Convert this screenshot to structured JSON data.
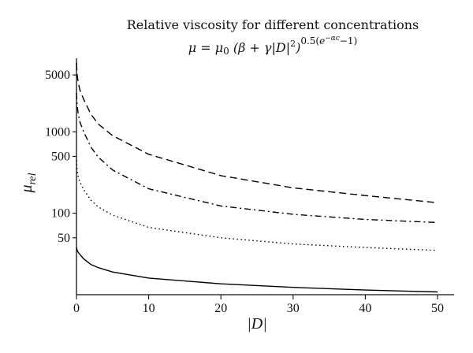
{
  "chart_data": {
    "type": "line",
    "title": "Relative viscosity for different concentrations",
    "subtitle": "μ = μ0 (β + γ|D|²)^(0.5(e^(−αc) − 1))",
    "xlabel": "|D|",
    "ylabel": "μrel",
    "xlim": [
      0,
      52
    ],
    "ylim": [
      10,
      8000
    ],
    "yscale": "log",
    "grid": false,
    "x_ticks": [
      0,
      10,
      20,
      30,
      40,
      50
    ],
    "x_tick_labels": [
      "0",
      "10",
      "20",
      "30",
      "40",
      "50"
    ],
    "y_ticks": [
      50,
      100,
      500,
      1000,
      5000
    ],
    "y_tick_labels": [
      "50",
      "100",
      "500",
      "1000",
      "5000"
    ],
    "x": [
      0,
      0.1,
      0.25,
      0.5,
      1,
      2,
      3,
      5,
      10,
      20,
      30,
      40,
      50
    ],
    "series": [
      {
        "style": "dashed",
        "values": [
          7000,
          5000,
          4000,
          3200,
          2500,
          1650,
          1250,
          900,
          530,
          290,
          205,
          165,
          135
        ]
      },
      {
        "style": "dashdot",
        "values": [
          3000,
          2100,
          1650,
          1300,
          1000,
          650,
          490,
          340,
          200,
          123,
          97,
          84,
          77
        ]
      },
      {
        "style": "dotted",
        "values": [
          450,
          330,
          280,
          240,
          195,
          145,
          120,
          95,
          67,
          50,
          42,
          38,
          35
        ]
      },
      {
        "style": "solid",
        "values": [
          38,
          35,
          33,
          31,
          27.5,
          23.5,
          21.5,
          19,
          16,
          13.6,
          12.3,
          11.4,
          10.8
        ]
      }
    ]
  }
}
